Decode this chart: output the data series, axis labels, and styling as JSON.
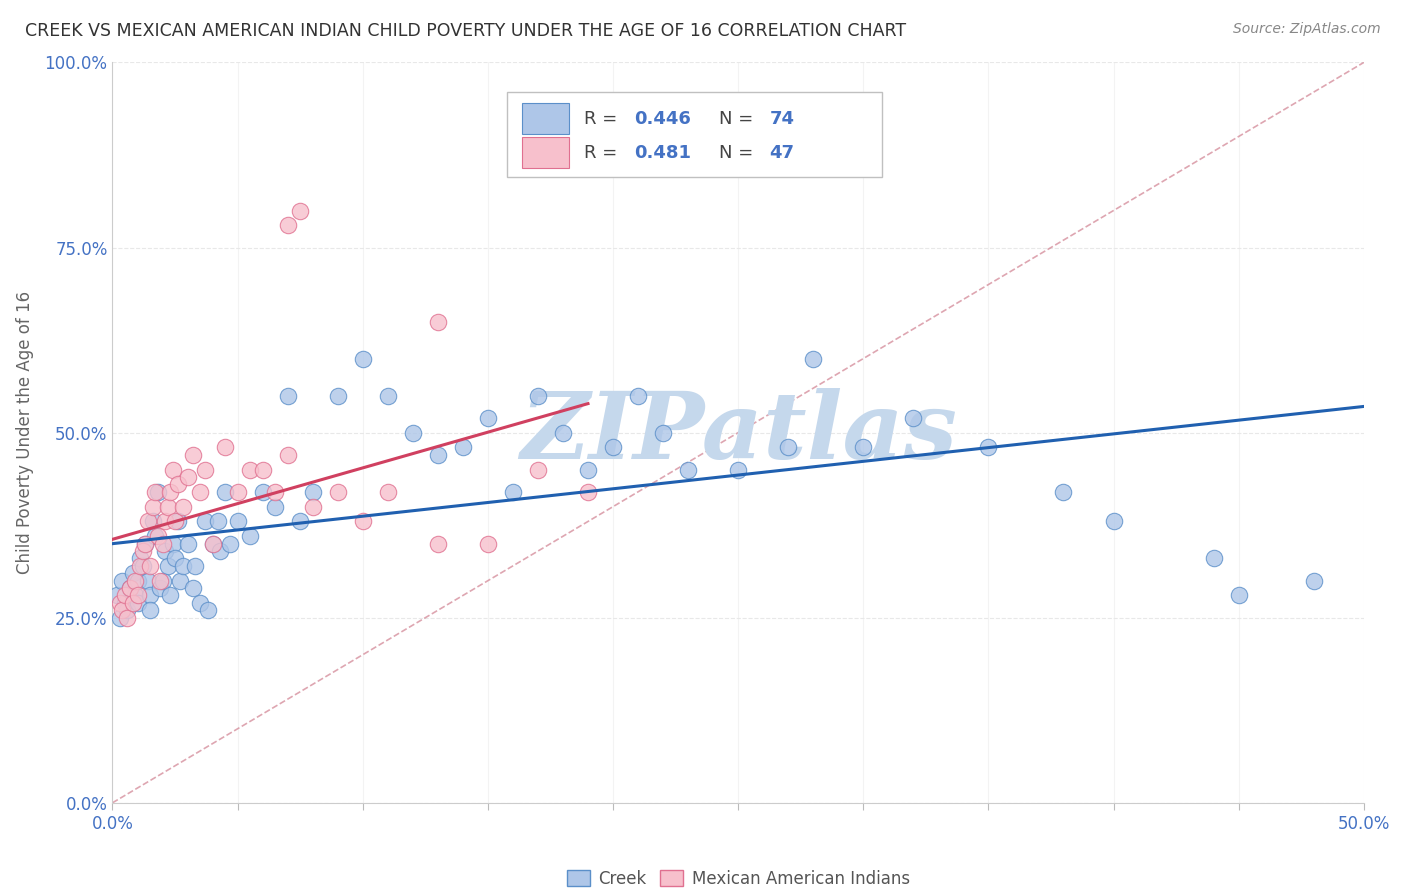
{
  "title": "CREEK VS MEXICAN AMERICAN INDIAN CHILD POVERTY UNDER THE AGE OF 16 CORRELATION CHART",
  "source": "Source: ZipAtlas.com",
  "ylabel": "Child Poverty Under the Age of 16",
  "xlim": [
    0,
    0.5
  ],
  "ylim": [
    0,
    1.0
  ],
  "creek_color": "#aec6e8",
  "creek_edge_color": "#5b8fc9",
  "mexican_color": "#f7c0cc",
  "mexican_edge_color": "#e07090",
  "trend_creek_color": "#2060b0",
  "trend_mexican_color": "#d04060",
  "reference_line_color": "#d08090",
  "legend_R_creek": "0.446",
  "legend_N_creek": "74",
  "legend_R_mexican": "0.481",
  "legend_N_mexican": "47",
  "watermark": "ZIPatlas",
  "watermark_color": "#c5d8ec",
  "background_color": "#ffffff",
  "grid_color": "#e8e8e8",
  "title_color": "#333333",
  "source_color": "#888888",
  "axis_label_color": "#4472c4",
  "ylabel_color": "#666666"
}
